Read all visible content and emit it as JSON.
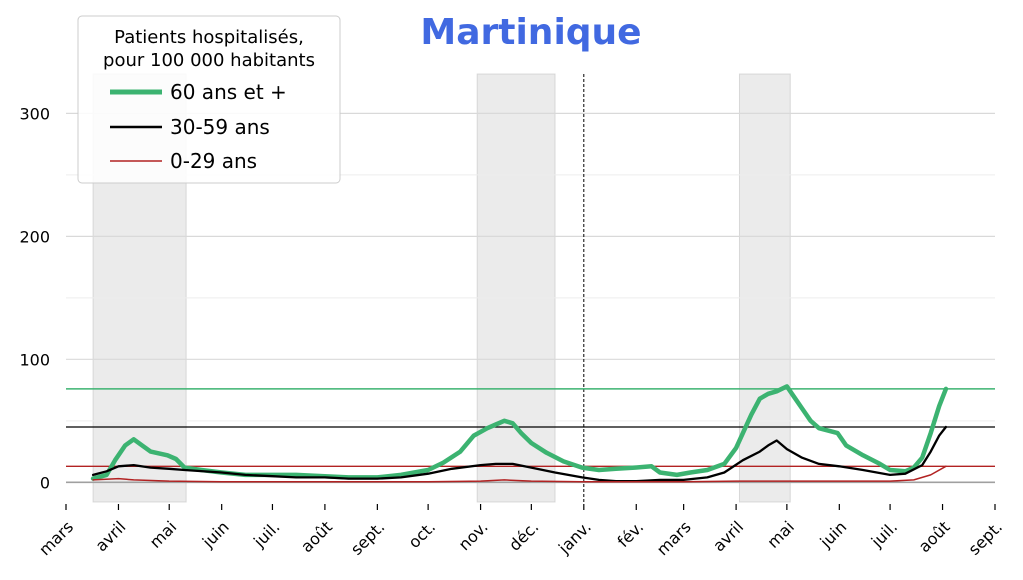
{
  "chart_data": {
    "type": "line",
    "title": "Martinique",
    "xlabel": "",
    "ylabel": "",
    "ylim": [
      -16,
      332
    ],
    "xlim": [
      "2020-03-01",
      "2021-09-01"
    ],
    "yticks": [
      0,
      100,
      200,
      300
    ],
    "yticks_minor": [
      50,
      150,
      250
    ],
    "grid": true,
    "x_tick_labels": [
      "mars",
      "avril",
      "mai",
      "juin",
      "juil.",
      "août",
      "sept.",
      "oct.",
      "nov.",
      "déc.",
      "janv.",
      "fév.",
      "mars",
      "avril",
      "mai",
      "juin",
      "juil.",
      "août",
      "sept."
    ],
    "x_tick_dates": [
      "2020-03-01",
      "2020-04-01",
      "2020-05-01",
      "2020-06-01",
      "2020-07-01",
      "2020-08-01",
      "2020-09-01",
      "2020-10-01",
      "2020-11-01",
      "2020-12-01",
      "2021-01-01",
      "2021-02-01",
      "2021-03-01",
      "2021-04-01",
      "2021-05-01",
      "2021-06-01",
      "2021-07-01",
      "2021-08-01",
      "2021-09-01"
    ],
    "shaded_periods": [
      {
        "start": "2020-03-17",
        "end": "2020-05-11"
      },
      {
        "start": "2020-10-30",
        "end": "2020-12-15"
      },
      {
        "start": "2021-04-03",
        "end": "2021-05-03"
      }
    ],
    "vertical_line": "2021-01-01",
    "legend": {
      "title_line1": "Patients hospitalisés,",
      "title_line2": "pour 100 000 habitants",
      "placement": "top-left"
    },
    "series": [
      {
        "name": "60 ans et +",
        "color": "#3cb371",
        "reference_value": 76,
        "points": [
          [
            "2020-03-17",
            3
          ],
          [
            "2020-03-25",
            6
          ],
          [
            "2020-03-30",
            18
          ],
          [
            "2020-04-05",
            30
          ],
          [
            "2020-04-10",
            35
          ],
          [
            "2020-04-15",
            30
          ],
          [
            "2020-04-20",
            25
          ],
          [
            "2020-04-30",
            22
          ],
          [
            "2020-05-05",
            19
          ],
          [
            "2020-05-10",
            12
          ],
          [
            "2020-05-20",
            10
          ],
          [
            "2020-06-01",
            8
          ],
          [
            "2020-06-15",
            6
          ],
          [
            "2020-07-01",
            6
          ],
          [
            "2020-07-15",
            6
          ],
          [
            "2020-08-01",
            5
          ],
          [
            "2020-08-15",
            4
          ],
          [
            "2020-09-01",
            4
          ],
          [
            "2020-09-15",
            6
          ],
          [
            "2020-10-01",
            10
          ],
          [
            "2020-10-10",
            16
          ],
          [
            "2020-10-20",
            25
          ],
          [
            "2020-10-28",
            38
          ],
          [
            "2020-11-05",
            44
          ],
          [
            "2020-11-10",
            47
          ],
          [
            "2020-11-15",
            50
          ],
          [
            "2020-11-20",
            48
          ],
          [
            "2020-11-25",
            40
          ],
          [
            "2020-12-01",
            32
          ],
          [
            "2020-12-10",
            24
          ],
          [
            "2020-12-20",
            17
          ],
          [
            "2020-12-31",
            12
          ],
          [
            "2021-01-10",
            10
          ],
          [
            "2021-01-20",
            11
          ],
          [
            "2021-01-31",
            12
          ],
          [
            "2021-02-10",
            13
          ],
          [
            "2021-02-15",
            8
          ],
          [
            "2021-02-25",
            6
          ],
          [
            "2021-03-05",
            8
          ],
          [
            "2021-03-15",
            10
          ],
          [
            "2021-03-25",
            15
          ],
          [
            "2021-04-01",
            28
          ],
          [
            "2021-04-05",
            40
          ],
          [
            "2021-04-10",
            55
          ],
          [
            "2021-04-15",
            68
          ],
          [
            "2021-04-20",
            72
          ],
          [
            "2021-04-25",
            74
          ],
          [
            "2021-05-01",
            78
          ],
          [
            "2021-05-05",
            70
          ],
          [
            "2021-05-10",
            60
          ],
          [
            "2021-05-15",
            50
          ],
          [
            "2021-05-20",
            44
          ],
          [
            "2021-05-31",
            40
          ],
          [
            "2021-06-05",
            30
          ],
          [
            "2021-06-15",
            22
          ],
          [
            "2021-06-25",
            15
          ],
          [
            "2021-07-01",
            10
          ],
          [
            "2021-07-10",
            9
          ],
          [
            "2021-07-15",
            12
          ],
          [
            "2021-07-20",
            20
          ],
          [
            "2021-07-25",
            40
          ],
          [
            "2021-07-30",
            62
          ],
          [
            "2021-08-03",
            76
          ]
        ]
      },
      {
        "name": "30-59 ans",
        "color": "#000000",
        "reference_value": 45,
        "points": [
          [
            "2020-03-17",
            6
          ],
          [
            "2020-03-25",
            9
          ],
          [
            "2020-04-01",
            13
          ],
          [
            "2020-04-10",
            14
          ],
          [
            "2020-04-20",
            12
          ],
          [
            "2020-05-01",
            11
          ],
          [
            "2020-05-10",
            10
          ],
          [
            "2020-06-01",
            8
          ],
          [
            "2020-06-15",
            6
          ],
          [
            "2020-07-01",
            5
          ],
          [
            "2020-07-15",
            4
          ],
          [
            "2020-08-01",
            4
          ],
          [
            "2020-08-15",
            3
          ],
          [
            "2020-09-01",
            3
          ],
          [
            "2020-09-15",
            4
          ],
          [
            "2020-10-01",
            7
          ],
          [
            "2020-10-15",
            11
          ],
          [
            "2020-11-01",
            14
          ],
          [
            "2020-11-10",
            15
          ],
          [
            "2020-11-20",
            15
          ],
          [
            "2020-12-01",
            12
          ],
          [
            "2020-12-15",
            8
          ],
          [
            "2020-12-31",
            4
          ],
          [
            "2021-01-10",
            2
          ],
          [
            "2021-01-20",
            1
          ],
          [
            "2021-02-01",
            1
          ],
          [
            "2021-02-15",
            2
          ],
          [
            "2021-03-01",
            2
          ],
          [
            "2021-03-15",
            4
          ],
          [
            "2021-03-25",
            8
          ],
          [
            "2021-04-05",
            18
          ],
          [
            "2021-04-15",
            25
          ],
          [
            "2021-04-20",
            30
          ],
          [
            "2021-04-25",
            34
          ],
          [
            "2021-05-01",
            27
          ],
          [
            "2021-05-10",
            20
          ],
          [
            "2021-05-20",
            15
          ],
          [
            "2021-06-01",
            13
          ],
          [
            "2021-06-15",
            10
          ],
          [
            "2021-07-01",
            6
          ],
          [
            "2021-07-10",
            7
          ],
          [
            "2021-07-20",
            14
          ],
          [
            "2021-07-25",
            25
          ],
          [
            "2021-07-30",
            38
          ],
          [
            "2021-08-03",
            45
          ]
        ]
      },
      {
        "name": "0-29 ans",
        "color": "#b22222",
        "reference_value": 13,
        "points": [
          [
            "2020-03-17",
            2
          ],
          [
            "2020-04-01",
            3
          ],
          [
            "2020-04-10",
            2
          ],
          [
            "2020-05-01",
            1
          ],
          [
            "2020-06-01",
            0.5
          ],
          [
            "2020-07-01",
            0.5
          ],
          [
            "2020-08-01",
            0.5
          ],
          [
            "2020-09-01",
            0.5
          ],
          [
            "2020-10-01",
            0.5
          ],
          [
            "2020-11-01",
            1
          ],
          [
            "2020-11-15",
            2
          ],
          [
            "2020-12-01",
            1
          ],
          [
            "2020-12-31",
            0.5
          ],
          [
            "2021-02-01",
            0.5
          ],
          [
            "2021-03-01",
            0.5
          ],
          [
            "2021-04-01",
            1
          ],
          [
            "2021-05-01",
            1
          ],
          [
            "2021-06-01",
            1
          ],
          [
            "2021-07-01",
            1
          ],
          [
            "2021-07-15",
            2
          ],
          [
            "2021-07-25",
            6
          ],
          [
            "2021-08-03",
            13
          ]
        ]
      }
    ]
  }
}
